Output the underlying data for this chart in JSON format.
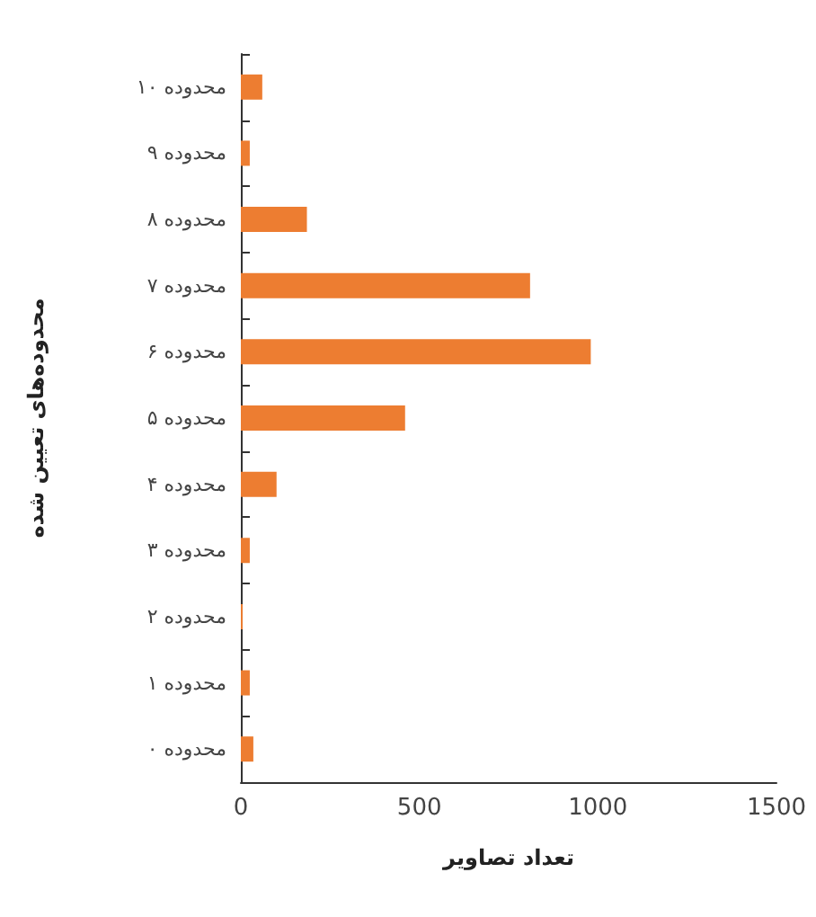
{
  "chart_data": {
    "type": "bar",
    "orientation": "horizontal",
    "categories": [
      "محدوده ۱۰",
      "محدوده ۹",
      "محدوده ۸",
      "محدوده ۷",
      "محدوده ۶",
      "محدوده ۵",
      "محدوده ۴",
      "محدوده ۳",
      "محدوده ۲",
      "محدوده ۱",
      "محدوده ۰"
    ],
    "values": [
      60,
      25,
      185,
      810,
      980,
      460,
      100,
      25,
      5,
      25,
      35
    ],
    "color": "#ed7d31",
    "xlim": [
      0,
      1500
    ],
    "xticks": [
      0,
      500,
      1000,
      1500
    ],
    "xlabel": "تعداد تصاویر",
    "ylabel": "محدوده‌های تعیین شده",
    "grid": false
  }
}
